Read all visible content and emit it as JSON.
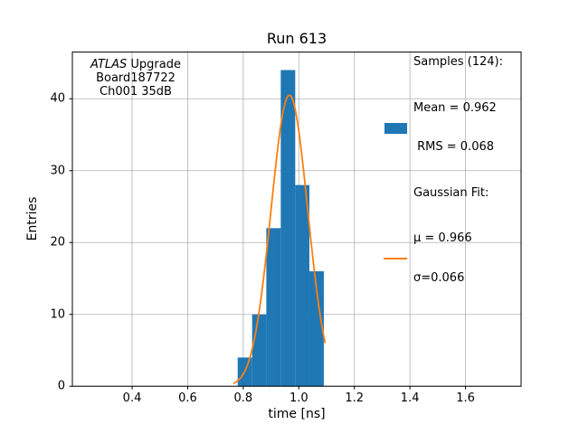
{
  "figure": {
    "title": "Run 613",
    "xlabel": "time [ns]",
    "ylabel": "Entries"
  },
  "annotation": {
    "line1_italic": "ATLAS",
    "line1_rest": " Upgrade",
    "line2": "Board187722",
    "line3": "Ch001 35dB"
  },
  "legend": {
    "samples_header": "Samples (124):",
    "mean_label": "Mean = 0.962",
    "rms_label": " RMS = 0.068",
    "fit_header": "Gaussian Fit:",
    "mu_label": "μ = 0.966",
    "sigma_label": "σ=0.066"
  },
  "chart_data": {
    "type": "bar",
    "title": "Run 613",
    "xlabel": "time [ns]",
    "ylabel": "Entries",
    "xlim": [
      0.185,
      1.8
    ],
    "ylim": [
      0,
      46.5
    ],
    "xticks": [
      0.4,
      0.6,
      0.8,
      1.0,
      1.2,
      1.4,
      1.6
    ],
    "yticks": [
      0,
      10,
      20,
      30,
      40
    ],
    "grid": true,
    "legend_position": "upper right",
    "histogram": {
      "bin_edges": [
        0.78,
        0.832,
        0.883,
        0.935,
        0.987,
        1.038,
        1.09
      ],
      "counts": [
        4,
        10,
        22,
        44,
        28,
        16
      ],
      "n_samples": 124,
      "mean": 0.962,
      "rms": 0.068,
      "color": "#1f77b4"
    },
    "gaussian_fit": {
      "amplitude": 40.5,
      "mu": 0.966,
      "sigma": 0.066,
      "x_range": [
        0.765,
        1.095
      ],
      "color": "#ff7f0e"
    },
    "colors": {
      "grid": "#b0b0b0",
      "axes": "#000000",
      "background": "#ffffff"
    }
  }
}
